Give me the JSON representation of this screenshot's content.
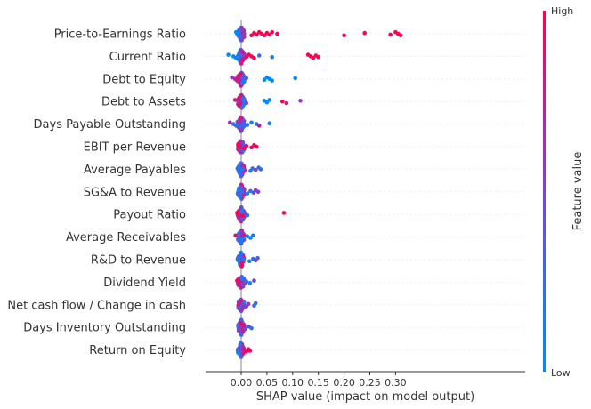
{
  "chart_data": {
    "type": "scatter",
    "subtype": "shap-beeswarm",
    "xlabel": "SHAP value (impact on model output)",
    "x_ticks": [
      0.0,
      0.05,
      0.1,
      0.15,
      0.2,
      0.25,
      0.3
    ],
    "x_tick_labels": [
      "0.00",
      "0.05",
      "0.10",
      "0.15",
      "0.20",
      "0.25",
      "0.30"
    ],
    "xlim": [
      -0.04,
      0.32
    ],
    "colorbar": {
      "high_label": "High",
      "low_label": "Low",
      "title": "Feature value",
      "low_color": "#008bfb",
      "high_color": "#ff0052"
    },
    "features": [
      {
        "name": "Price-to-Earnings Ratio",
        "high_side": "right",
        "points": [
          [
            -0.01,
            0
          ],
          [
            -0.008,
            0
          ],
          [
            0.02,
            1
          ],
          [
            0.025,
            1
          ],
          [
            0.03,
            1
          ],
          [
            0.035,
            1
          ],
          [
            0.04,
            1
          ],
          [
            0.045,
            1
          ],
          [
            0.05,
            1
          ],
          [
            0.055,
            1
          ],
          [
            0.06,
            1
          ],
          [
            0.07,
            1
          ],
          [
            0.2,
            1
          ],
          [
            0.24,
            1
          ],
          [
            0.29,
            1
          ],
          [
            0.3,
            1
          ],
          [
            0.305,
            1
          ],
          [
            0.31,
            1
          ]
        ]
      },
      {
        "name": "Current Ratio",
        "high_side": "right",
        "points": [
          [
            -0.025,
            0
          ],
          [
            -0.015,
            0
          ],
          [
            -0.01,
            0
          ],
          [
            0.005,
            0.5
          ],
          [
            0.01,
            1
          ],
          [
            0.015,
            1
          ],
          [
            0.02,
            1
          ],
          [
            0.025,
            1
          ],
          [
            0.035,
            0.2
          ],
          [
            0.06,
            0.1
          ],
          [
            0.13,
            1
          ],
          [
            0.135,
            1
          ],
          [
            0.14,
            1
          ],
          [
            0.145,
            1
          ],
          [
            0.15,
            1
          ]
        ]
      },
      {
        "name": "Debt to Equity",
        "high_side": "left",
        "points": [
          [
            -0.018,
            0.6
          ],
          [
            -0.012,
            0.7
          ],
          [
            -0.008,
            0.8
          ],
          [
            0.01,
            0.3
          ],
          [
            0.045,
            0
          ],
          [
            0.05,
            0
          ],
          [
            0.055,
            0
          ],
          [
            0.06,
            0
          ],
          [
            0.105,
            0
          ]
        ]
      },
      {
        "name": "Debt to Assets",
        "high_side": "left",
        "points": [
          [
            -0.012,
            0.8
          ],
          [
            -0.006,
            0.6
          ],
          [
            0.01,
            0.5
          ],
          [
            0.045,
            0
          ],
          [
            0.05,
            0
          ],
          [
            0.055,
            0
          ],
          [
            0.08,
            1
          ],
          [
            0.088,
            0.8
          ],
          [
            0.115,
            0.6
          ]
        ]
      },
      {
        "name": "Days Payable Outstanding",
        "high_side": "mixed",
        "points": [
          [
            -0.022,
            0.7
          ],
          [
            -0.015,
            0.2
          ],
          [
            -0.01,
            0.2
          ],
          [
            0.005,
            0.3
          ],
          [
            0.012,
            0.1
          ],
          [
            0.02,
            0.1
          ],
          [
            0.03,
            0.2
          ],
          [
            0.035,
            0.8
          ],
          [
            0.055,
            0.1
          ]
        ]
      },
      {
        "name": "EBIT per Revenue",
        "high_side": "left",
        "points": [
          [
            -0.006,
            1
          ],
          [
            -0.002,
            0.9
          ],
          [
            0.005,
            1
          ],
          [
            0.01,
            1
          ],
          [
            0.02,
            1
          ],
          [
            0.025,
            0.9
          ],
          [
            0.03,
            1
          ]
        ]
      },
      {
        "name": "Average Payables",
        "high_side": "right",
        "points": [
          [
            -0.006,
            0.1
          ],
          [
            0.003,
            0.2
          ],
          [
            0.018,
            0.1
          ],
          [
            0.022,
            0.3
          ],
          [
            0.028,
            0.5
          ],
          [
            0.034,
            0.2
          ],
          [
            0.038,
            0.2
          ]
        ]
      },
      {
        "name": "SG&A to Revenue",
        "high_side": "right",
        "points": [
          [
            -0.005,
            0.1
          ],
          [
            0.002,
            0.2
          ],
          [
            0.012,
            0.1
          ],
          [
            0.018,
            0.2
          ],
          [
            0.024,
            0.4
          ],
          [
            0.028,
            0.6
          ],
          [
            0.033,
            0.5
          ]
        ]
      },
      {
        "name": "Payout Ratio",
        "high_side": "left",
        "points": [
          [
            -0.008,
            1
          ],
          [
            -0.003,
            0.9
          ],
          [
            0.003,
            1
          ],
          [
            0.008,
            0.7
          ],
          [
            0.012,
            0.1
          ],
          [
            0.083,
            1
          ]
        ]
      },
      {
        "name": "Average Receivables",
        "high_side": "right",
        "points": [
          [
            -0.011,
            0.9
          ],
          [
            -0.004,
            0.3
          ],
          [
            0.004,
            0.1
          ],
          [
            0.012,
            0.1
          ],
          [
            0.018,
            0.1
          ],
          [
            0.023,
            0.1
          ]
        ]
      },
      {
        "name": "R&D to Revenue",
        "high_side": "right",
        "points": [
          [
            -0.004,
            0.2
          ],
          [
            0.005,
            0.1
          ],
          [
            0.016,
            0.1
          ],
          [
            0.023,
            0.2
          ],
          [
            0.028,
            0.5
          ],
          [
            0.032,
            0.3
          ]
        ]
      },
      {
        "name": "Dividend Yield",
        "high_side": "left",
        "points": [
          [
            -0.008,
            1
          ],
          [
            -0.002,
            0.8
          ],
          [
            0.006,
            0.6
          ],
          [
            0.01,
            0.2
          ],
          [
            0.017,
            0.1
          ],
          [
            0.025,
            0.5
          ]
        ]
      },
      {
        "name": "Net cash flow / Change in cash",
        "high_side": "mixed",
        "points": [
          [
            -0.004,
            0.7
          ],
          [
            0.002,
            0.6
          ],
          [
            0.01,
            0.5
          ],
          [
            0.014,
            0.6
          ],
          [
            0.025,
            0.2
          ],
          [
            0.028,
            0.2
          ]
        ]
      },
      {
        "name": "Days Inventory Outstanding",
        "high_side": "mixed",
        "points": [
          [
            -0.006,
            0.3
          ],
          [
            0.001,
            0.7
          ],
          [
            0.008,
            0.5
          ],
          [
            0.015,
            0.4
          ],
          [
            0.02,
            0.2
          ]
        ]
      },
      {
        "name": "Return on Equity",
        "high_side": "right",
        "points": [
          [
            -0.002,
            0.5
          ],
          [
            0.004,
            0.8
          ],
          [
            0.01,
            1
          ],
          [
            0.014,
            1
          ],
          [
            0.017,
            0.9
          ]
        ]
      }
    ]
  }
}
